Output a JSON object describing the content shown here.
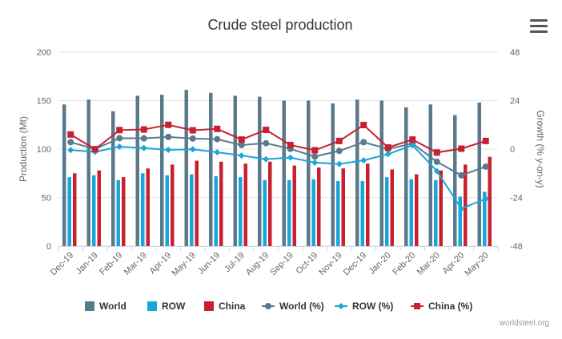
{
  "chart_data": {
    "type": "bar",
    "title": "Crude steel production",
    "ylabel": "Production (Mt)",
    "y2label": "Growth (% y-on-y)",
    "ylim": [
      0,
      200
    ],
    "y2lim": [
      -48,
      48
    ],
    "yticks": [
      "0",
      "50",
      "100",
      "150",
      "200"
    ],
    "y2ticks": [
      "-48",
      "-24",
      "0",
      "24",
      "48"
    ],
    "categories": [
      "Dec-19",
      "Jan-19",
      "Feb-19",
      "Mar-19",
      "Apr-19",
      "May-19",
      "Jun-19",
      "Jul-19",
      "Aug-19",
      "Sep-19",
      "Oct-19",
      "Nov-19",
      "Dec-19",
      "Jan-20",
      "Feb-20",
      "Mar-20",
      "Apr-20",
      "May-20"
    ],
    "legend_position": "bottom",
    "bar_series": [
      {
        "name": "World",
        "color": "#5a7a8c",
        "values": [
          146,
          151,
          139,
          155,
          156,
          161,
          158,
          155,
          154,
          150,
          150,
          147,
          151,
          150,
          143,
          146,
          135,
          148
        ]
      },
      {
        "name": "ROW",
        "color": "#1aa6d8",
        "values": [
          71,
          73,
          68,
          75,
          73,
          74,
          72,
          71,
          68,
          68,
          69,
          67,
          67,
          71,
          69,
          68,
          51,
          56
        ]
      },
      {
        "name": "China",
        "color": "#c8202f",
        "values": [
          75,
          78,
          71,
          80,
          84,
          88,
          87,
          85,
          87,
          83,
          81,
          80,
          85,
          79,
          74,
          78,
          84,
          92
        ]
      }
    ],
    "line_series": [
      {
        "name": "World (%)",
        "color": "#5a7a8c",
        "marker": "circle",
        "values": [
          3.4,
          0.0,
          5.4,
          5.3,
          6.0,
          5.2,
          4.9,
          2.0,
          2.9,
          0.1,
          -3.7,
          -0.9,
          3.4,
          0.0,
          2.8,
          -6.3,
          -13.0,
          -8.7
        ]
      },
      {
        "name": "ROW (%)",
        "color": "#1aa6d8",
        "marker": "diamond",
        "values": [
          -0.5,
          -1.4,
          1.2,
          0.5,
          -0.4,
          -0.1,
          -1.6,
          -3.2,
          -5.0,
          -4.2,
          -6.7,
          -7.4,
          -5.6,
          -2.5,
          1.9,
          -10.9,
          -29.5,
          -24.6
        ]
      },
      {
        "name": "China (%)",
        "color": "#c8202f",
        "marker": "square",
        "values": [
          7.2,
          -0.1,
          9.4,
          9.7,
          12.0,
          9.3,
          10.0,
          4.7,
          9.5,
          2.0,
          -0.6,
          4.0,
          11.9,
          0.8,
          4.7,
          -1.7,
          0.2,
          4.0
        ]
      }
    ]
  },
  "credit": "worldsteel.org",
  "icons": {
    "menu": "hamburger-menu-icon"
  }
}
